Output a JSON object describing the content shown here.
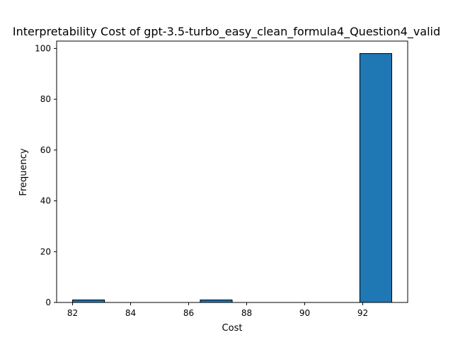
{
  "chart_data": {
    "type": "bar",
    "title": "Interpretability Cost of gpt-3.5-turbo_easy_clean_formula4_Question4_valid",
    "xlabel": "Cost",
    "ylabel": "Frequency",
    "xlim": [
      81.45,
      93.55
    ],
    "ylim": [
      0,
      102.9
    ],
    "xticks": [
      82,
      84,
      86,
      88,
      90,
      92
    ],
    "yticks": [
      0,
      20,
      40,
      60,
      80,
      100
    ],
    "bins": [
      {
        "x0": 82.0,
        "x1": 83.1,
        "value": 1
      },
      {
        "x0": 83.1,
        "x1": 84.2,
        "value": 0
      },
      {
        "x0": 84.2,
        "x1": 85.3,
        "value": 0
      },
      {
        "x0": 85.3,
        "x1": 86.4,
        "value": 0
      },
      {
        "x0": 86.4,
        "x1": 87.5,
        "value": 1
      },
      {
        "x0": 87.5,
        "x1": 88.6,
        "value": 0
      },
      {
        "x0": 88.6,
        "x1": 89.7,
        "value": 0
      },
      {
        "x0": 89.7,
        "x1": 90.8,
        "value": 0
      },
      {
        "x0": 90.8,
        "x1": 91.9,
        "value": 0
      },
      {
        "x0": 91.9,
        "x1": 93.0,
        "value": 98
      }
    ],
    "bar_color": "#1f77b4",
    "edge_color": "#000000",
    "grid": false,
    "legend": "none"
  }
}
